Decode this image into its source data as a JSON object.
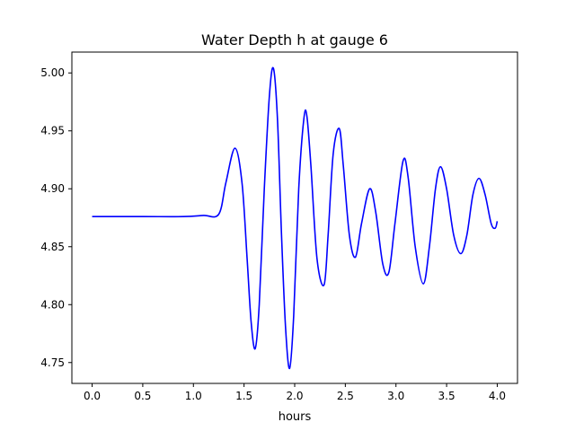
{
  "chart_data": {
    "type": "line",
    "title": "Water Depth h at gauge 6",
    "xlabel": "hours",
    "ylabel": "",
    "xlim": [
      -0.2,
      4.2
    ],
    "ylim": [
      4.732,
      5.018
    ],
    "xticks": [
      0.0,
      0.5,
      1.0,
      1.5,
      2.0,
      2.5,
      3.0,
      3.5,
      4.0
    ],
    "xtick_labels": [
      "0.0",
      "0.5",
      "1.0",
      "1.5",
      "2.0",
      "2.5",
      "3.0",
      "3.5",
      "4.0"
    ],
    "yticks": [
      4.75,
      4.8,
      4.85,
      4.9,
      4.95,
      5.0
    ],
    "ytick_labels": [
      "4.75",
      "4.80",
      "4.85",
      "4.90",
      "4.95",
      "5.00"
    ],
    "grid": false,
    "legend": false,
    "series": [
      {
        "color": "#0000ff",
        "points": [
          [
            0.0,
            4.876
          ],
          [
            0.5,
            4.876
          ],
          [
            0.9,
            4.876
          ],
          [
            1.1,
            4.877
          ],
          [
            1.25,
            4.878
          ],
          [
            1.32,
            4.905
          ],
          [
            1.41,
            4.935
          ],
          [
            1.48,
            4.905
          ],
          [
            1.53,
            4.84
          ],
          [
            1.57,
            4.785
          ],
          [
            1.61,
            4.762
          ],
          [
            1.65,
            4.8
          ],
          [
            1.7,
            4.9
          ],
          [
            1.75,
            4.98
          ],
          [
            1.79,
            5.004
          ],
          [
            1.83,
            4.96
          ],
          [
            1.87,
            4.86
          ],
          [
            1.91,
            4.78
          ],
          [
            1.95,
            4.745
          ],
          [
            1.99,
            4.79
          ],
          [
            2.04,
            4.9
          ],
          [
            2.09,
            4.96
          ],
          [
            2.12,
            4.963
          ],
          [
            2.16,
            4.92
          ],
          [
            2.22,
            4.84
          ],
          [
            2.29,
            4.817
          ],
          [
            2.33,
            4.86
          ],
          [
            2.38,
            4.93
          ],
          [
            2.44,
            4.952
          ],
          [
            2.48,
            4.92
          ],
          [
            2.54,
            4.86
          ],
          [
            2.6,
            4.841
          ],
          [
            2.66,
            4.87
          ],
          [
            2.74,
            4.9
          ],
          [
            2.8,
            4.88
          ],
          [
            2.87,
            4.835
          ],
          [
            2.93,
            4.828
          ],
          [
            2.99,
            4.87
          ],
          [
            3.07,
            4.924
          ],
          [
            3.12,
            4.91
          ],
          [
            3.19,
            4.85
          ],
          [
            3.27,
            4.818
          ],
          [
            3.33,
            4.85
          ],
          [
            3.39,
            4.9
          ],
          [
            3.44,
            4.919
          ],
          [
            3.5,
            4.9
          ],
          [
            3.57,
            4.86
          ],
          [
            3.64,
            4.844
          ],
          [
            3.7,
            4.86
          ],
          [
            3.76,
            4.895
          ],
          [
            3.82,
            4.909
          ],
          [
            3.88,
            4.895
          ],
          [
            3.94,
            4.87
          ],
          [
            3.98,
            4.866
          ],
          [
            4.0,
            4.872
          ]
        ]
      }
    ]
  }
}
